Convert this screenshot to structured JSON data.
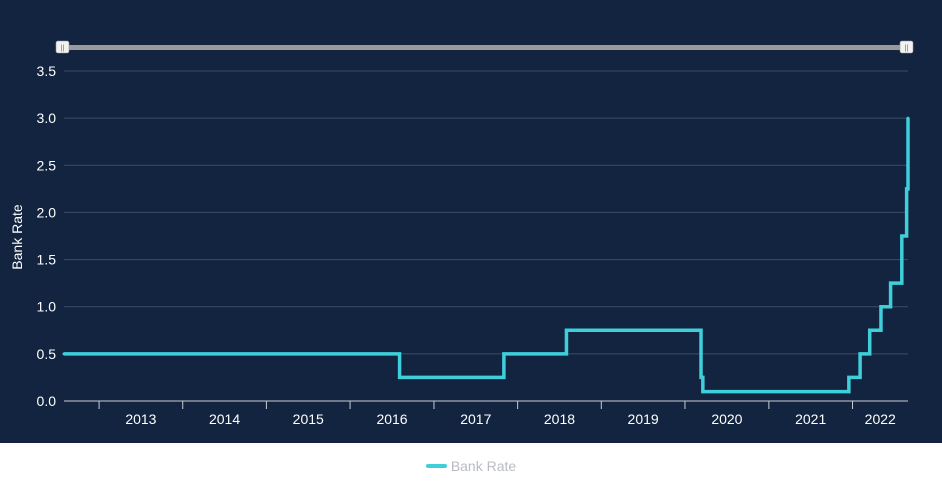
{
  "chart_data": {
    "type": "line",
    "step": true,
    "ylabel": "Bank Rate",
    "xlabel": "",
    "ylim": [
      0,
      3.5
    ],
    "yticks": [
      "0.0",
      "0.5",
      "1.0",
      "1.5",
      "2.0",
      "2.5",
      "3.0",
      "3.5"
    ],
    "xticks": [
      "2013",
      "2014",
      "2015",
      "2016",
      "2017",
      "2018",
      "2019",
      "2020",
      "2021",
      "2022"
    ],
    "x_range": [
      "2012-08-01",
      "2022-08-31"
    ],
    "grid": true,
    "legend_position": "bottom-center",
    "colors": {
      "line": "#3ecfdb",
      "background": "#12243f",
      "grid": "#3c4e66",
      "scrollbar": "#9a9a9a"
    },
    "series": [
      {
        "name": "Bank Rate",
        "points": [
          [
            "2012-08-01",
            0.5
          ],
          [
            "2016-08-04",
            0.25
          ],
          [
            "2017-11-02",
            0.5
          ],
          [
            "2018-08-02",
            0.75
          ],
          [
            "2020-03-11",
            0.25
          ],
          [
            "2020-03-19",
            0.1
          ],
          [
            "2021-12-16",
            0.25
          ],
          [
            "2022-02-03",
            0.5
          ],
          [
            "2022-03-17",
            0.75
          ],
          [
            "2022-05-05",
            1.0
          ],
          [
            "2022-06-16",
            1.25
          ],
          [
            "2022-08-04",
            1.75
          ],
          [
            "2022-08-25",
            2.25
          ],
          [
            "2022-08-31",
            3.0
          ]
        ]
      }
    ]
  },
  "legend": {
    "label": "Bank Rate"
  },
  "navigator": {
    "left_handle": "||",
    "right_handle": "||"
  }
}
